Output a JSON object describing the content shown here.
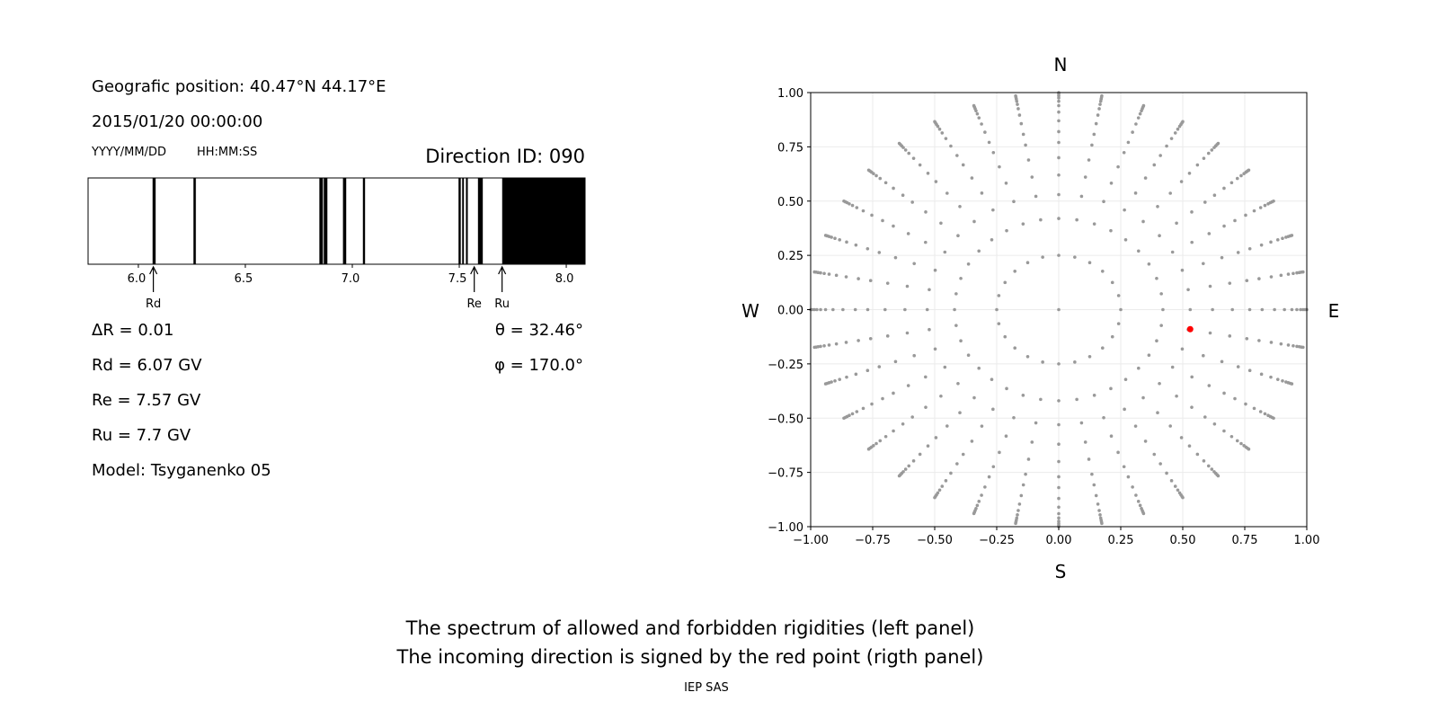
{
  "info": {
    "position": "Geografic position: 40.47°N 44.17°E",
    "datetime": "2015/01/20 00:00:00",
    "date_format": "YYYY/MM/DD",
    "time_format": "HH:MM:SS",
    "direction_id": "Direction ID: 090",
    "delta_r": "ΔR = 0.01",
    "rd": "Rd = 6.07 GV",
    "re": "Re = 7.57 GV",
    "ru": "Ru = 7.7 GV",
    "model": "Model: Tsyganenko 05",
    "theta": "θ = 32.46°",
    "phi": "φ = 170.0°"
  },
  "footer": {
    "line1": "The spectrum of allowed and forbidden rigidities (left panel)",
    "line2": "The incoming direction is signed by the red point (rigth panel)",
    "credit": "IEP SAS"
  },
  "chart_data": [
    {
      "type": "bar",
      "xlim": [
        5.765,
        8.088
      ],
      "xticks": [
        "6.0",
        "6.5",
        "7.0",
        "7.5",
        "8.0"
      ],
      "xtick_values": [
        6.0,
        6.5,
        7.0,
        7.5,
        8.0
      ],
      "forbidden_bands": [
        [
          6.066,
          6.081
        ],
        [
          6.257,
          6.269
        ],
        [
          6.846,
          6.863
        ],
        [
          6.866,
          6.884
        ],
        [
          6.956,
          6.972
        ],
        [
          7.049,
          7.06
        ],
        [
          7.496,
          7.507
        ],
        [
          7.513,
          7.522
        ],
        [
          7.531,
          7.54
        ],
        [
          7.587,
          7.61
        ],
        [
          7.7,
          8.088
        ]
      ],
      "annotations": [
        {
          "label": "Rd",
          "value": 6.07
        },
        {
          "label": "Re",
          "value": 7.57
        },
        {
          "label": "Ru",
          "value": 7.7
        }
      ],
      "colors": {
        "forbidden": "#000000",
        "allowed": "#ffffff"
      }
    },
    {
      "type": "scatter",
      "xlim": [
        -1,
        1
      ],
      "ylim": [
        -1,
        1
      ],
      "ticks": [
        "−1.00",
        "−0.75",
        "−0.50",
        "−0.25",
        "0.00",
        "0.25",
        "0.50",
        "0.75",
        "1.00"
      ],
      "tick_values": [
        -1,
        -0.75,
        -0.5,
        -0.25,
        0,
        0.25,
        0.5,
        0.75,
        1
      ],
      "grid": true,
      "compass": {
        "north": "N",
        "south": "S",
        "west": "W",
        "east": "E"
      },
      "grid_points": {
        "center": [
          0,
          0
        ],
        "inner_circle_radius": 0.25,
        "inner_circle_count": 24,
        "ray_azimuth_step_deg": 10,
        "ray_radii": [
          0.42,
          0.53,
          0.62,
          0.7,
          0.77,
          0.82,
          0.87,
          0.91,
          0.94,
          0.96,
          0.975,
          0.985,
          0.993,
          1.0
        ]
      },
      "highlight_point": {
        "x": 0.53,
        "y": -0.09
      },
      "colors": {
        "grid_points": "#999999",
        "highlight": "#ff0000"
      }
    }
  ]
}
